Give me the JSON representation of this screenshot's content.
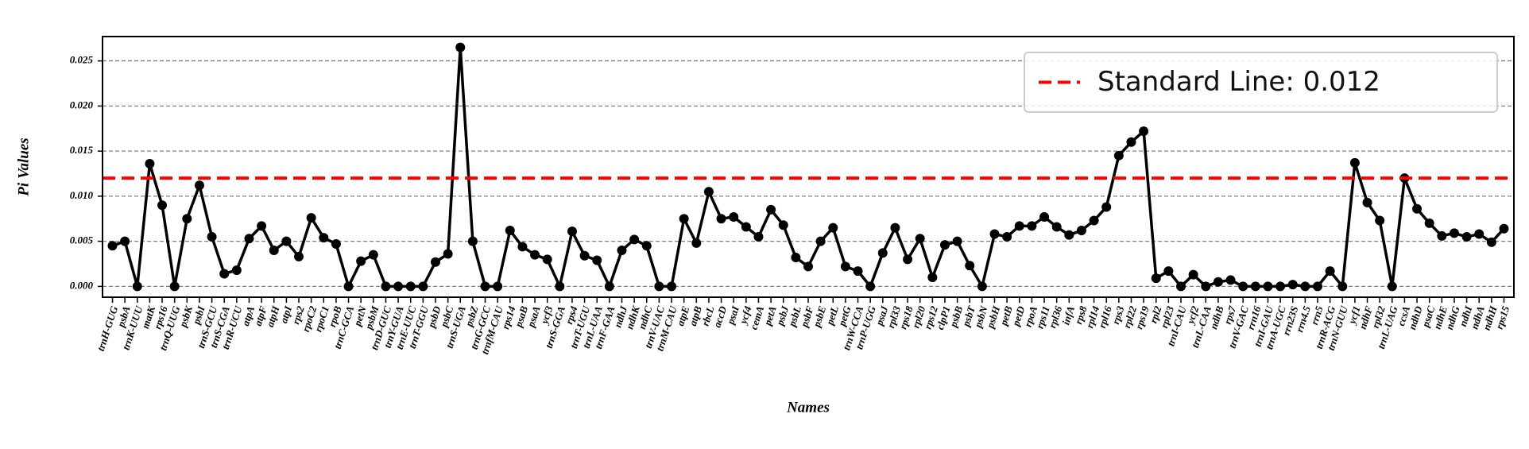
{
  "chart_data": {
    "type": "line",
    "x_label": "Names",
    "y_label": "Pi Values",
    "categories": [
      "trnH-GUG",
      "psbA",
      "trnK-UUU",
      "matK",
      "rps16",
      "trnQ-UUG",
      "psbK",
      "psbI",
      "trnS-GCU",
      "trnS-CGA",
      "trnR-UCU",
      "atpA",
      "atpF",
      "atpH",
      "atpI",
      "rps2",
      "rpoC2",
      "rpoC1",
      "rpoB",
      "trnC-GCA",
      "petN",
      "psbM",
      "trnD-GUC",
      "trnY-GUA",
      "trnE-UUC",
      "trnT-GGU",
      "psbD",
      "psbC",
      "trnS-UGA",
      "psbZ",
      "trnG-GCC",
      "trnfM-CAU",
      "rps14",
      "psaB",
      "psaA",
      "ycf3",
      "trnS-GGA",
      "rps4",
      "trnT-UGU",
      "trnL-UAA",
      "trnF-GAA",
      "ndhJ",
      "ndhK",
      "ndhC",
      "trnV-UAC",
      "trnM-CAU",
      "atpE",
      "atpB",
      "rbcL",
      "accD",
      "psaI",
      "ycf4",
      "cemA",
      "petA",
      "psbJ",
      "psbL",
      "psbF",
      "psbE",
      "petL",
      "petG",
      "trnW-CCA",
      "trnP-UGG",
      "psaJ",
      "rpl33",
      "rps18",
      "rpl20",
      "rps12",
      "clpP1",
      "psbB",
      "psbT",
      "psbN",
      "psbH",
      "petB",
      "petD",
      "rpoA",
      "rps11",
      "rpl36",
      "infA",
      "rps8",
      "rpl14",
      "rpl16",
      "rps3",
      "rpl22",
      "rps19",
      "rpl2",
      "rpl23",
      "trnI-CAU",
      "ycf2",
      "trnL-CAA",
      "ndhB",
      "rps7",
      "trnV-GAC",
      "rrn16",
      "trnI-GAU",
      "trnA-UGC",
      "rrn23S",
      "rrn4.5",
      "rrn5",
      "trnR-ACG",
      "trnN-GUU",
      "ycf1",
      "ndhF",
      "rpl32",
      "trnL-UAG",
      "ccsA",
      "ndhD",
      "psaC",
      "ndhE",
      "ndhG",
      "ndhI",
      "ndhA",
      "ndhH",
      "rps15"
    ],
    "series": [
      {
        "name": "Pi",
        "color": "#000000",
        "values": [
          0.0045,
          0.005,
          0,
          0.0136,
          0.009,
          0,
          0.0075,
          0.0112,
          0.0055,
          0.0014,
          0.0018,
          0.0053,
          0.0067,
          0.004,
          0.005,
          0.0033,
          0.0076,
          0.0054,
          0.0047,
          0,
          0.0028,
          0.0035,
          0,
          0,
          0,
          0,
          0.0027,
          0.0036,
          0.0265,
          0.005,
          0,
          0,
          0.0062,
          0.0044,
          0.0035,
          0.003,
          0,
          0.0061,
          0.0034,
          0.0029,
          0,
          0.004,
          0.0052,
          0.0045,
          0,
          0,
          0.0075,
          0.0048,
          0.0105,
          0.0075,
          0.0077,
          0.0066,
          0.0055,
          0.0085,
          0.0068,
          0.0032,
          0.0022,
          0.005,
          0.0065,
          0.0022,
          0.0017,
          0,
          0.0037,
          0.0065,
          0.003,
          0.0053,
          0.001,
          0.0046,
          0.005,
          0.0023,
          0,
          0.0058,
          0.0055,
          0.0067,
          0.0067,
          0.0077,
          0.0066,
          0.0057,
          0.0062,
          0.0073,
          0.0088,
          0.0145,
          0.016,
          0.0172,
          0.0009,
          0.0017,
          0,
          0.0013,
          0,
          0.0005,
          0.0007,
          0,
          0,
          0,
          0,
          0.0002,
          0,
          0,
          0.0017,
          0,
          0.0137,
          0.0093,
          0.0073,
          0,
          0.012,
          0.0086,
          0.007,
          0.0056,
          0.0059,
          0.0055,
          0.0058,
          0.0049,
          0.0064
        ]
      }
    ],
    "standard_line": {
      "label": "Standard Line: 0.012",
      "value": 0.012,
      "color": "#ff0000"
    },
    "legend": "upper right",
    "ylim": [
      -0.0012,
      0.0277
    ],
    "yticks": [
      {
        "value": 0,
        "label": "0.000"
      },
      0.005,
      {
        "value": 0.01,
        "label": "0.010"
      },
      0.015,
      {
        "value": 0.02,
        "label": "0.020"
      },
      0.025
    ],
    "grid": true
  }
}
